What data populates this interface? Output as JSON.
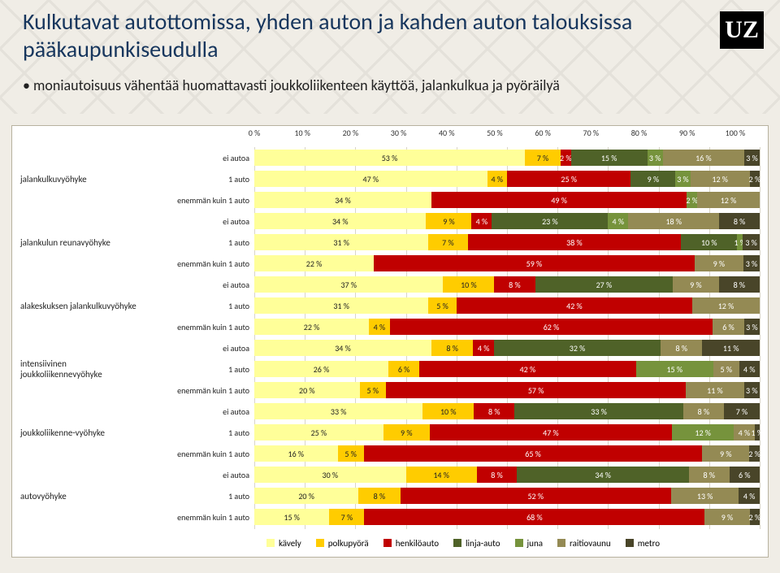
{
  "title": "Kulkutavat autottomissa, yhden auton ja kahden auton talouksissa pääkaupunkiseudulla",
  "bullet": "moniautoisuus vähentää huomattavasti joukkoliikenteen käyttöä, jalankulkua ja pyöräilyä",
  "logo_text": "UZ",
  "chart": {
    "type": "stacked-bar-horizontal",
    "background_color": "#ffffff",
    "border_color": "#b7b29f",
    "axis_ticks": [
      "0 %",
      "10 %",
      "20 %",
      "30 %",
      "40 %",
      "50 %",
      "60 %",
      "70 %",
      "80 %",
      "90 %",
      "100 %"
    ],
    "axis_tick_pct": [
      0,
      10,
      20,
      30,
      40,
      50,
      60,
      70,
      80,
      90,
      100
    ],
    "grid_color": "#d9d5c8",
    "font_size_labels": 10,
    "series": [
      {
        "key": "kavely",
        "label": "kävely",
        "color": "#ffff99",
        "text": "dark"
      },
      {
        "key": "polkupyora",
        "label": "polkupyörä",
        "color": "#ffcc00",
        "text": "dark"
      },
      {
        "key": "henkiloauto",
        "label": "henkilöauto",
        "color": "#c00000",
        "text": "light"
      },
      {
        "key": "linja_auto",
        "label": "linja-auto",
        "color": "#4f6228",
        "text": "light"
      },
      {
        "key": "juna",
        "label": "juna",
        "color": "#76933c",
        "text": "light"
      },
      {
        "key": "raitiovaunu",
        "label": "raitiovaunu",
        "color": "#948a54",
        "text": "light"
      },
      {
        "key": "metro",
        "label": "metro",
        "color": "#494529",
        "text": "light"
      }
    ],
    "sub_labels": [
      "ei autoa",
      "1 auto",
      "enemmän kuin 1 auto"
    ],
    "groups": [
      {
        "label": "jalankulkuvyöhyke",
        "rows": [
          [
            53,
            7,
            2,
            15,
            3,
            16,
            3
          ],
          [
            47,
            4,
            25,
            9,
            3,
            12,
            2
          ],
          [
            34,
            0,
            49,
            0,
            2,
            12,
            0
          ]
        ]
      },
      {
        "label": "jalankulun reunavyöhyke",
        "rows": [
          [
            34,
            9,
            4,
            23,
            4,
            18,
            8
          ],
          [
            31,
            7,
            38,
            10,
            1,
            0,
            3
          ],
          [
            22,
            0,
            59,
            0,
            0,
            9,
            3
          ]
        ]
      },
      {
        "label": "alakeskuksen jalankulkuvyöhyke",
        "rows": [
          [
            37,
            10,
            8,
            27,
            0,
            9,
            8
          ],
          [
            31,
            5,
            42,
            0,
            0,
            12,
            0
          ],
          [
            22,
            4,
            62,
            0,
            0,
            6,
            3
          ]
        ]
      },
      {
        "label": "intensiivinen joukkoliikennevyöhyke",
        "rows": [
          [
            34,
            8,
            4,
            32,
            0,
            8,
            11
          ],
          [
            26,
            6,
            42,
            0,
            15,
            5,
            4
          ],
          [
            20,
            5,
            57,
            0,
            0,
            11,
            3
          ]
        ]
      },
      {
        "label": "joukkoliikenne-vyöhyke",
        "rows": [
          [
            33,
            10,
            8,
            33,
            0,
            8,
            7
          ],
          [
            25,
            9,
            47,
            0,
            12,
            4,
            1
          ],
          [
            16,
            5,
            65,
            0,
            0,
            9,
            2
          ]
        ]
      },
      {
        "label": "autovyöhyke",
        "rows": [
          [
            30,
            14,
            8,
            34,
            0,
            8,
            6
          ],
          [
            20,
            8,
            52,
            0,
            0,
            13,
            4
          ],
          [
            15,
            7,
            68,
            0,
            0,
            9,
            2
          ]
        ]
      }
    ]
  }
}
